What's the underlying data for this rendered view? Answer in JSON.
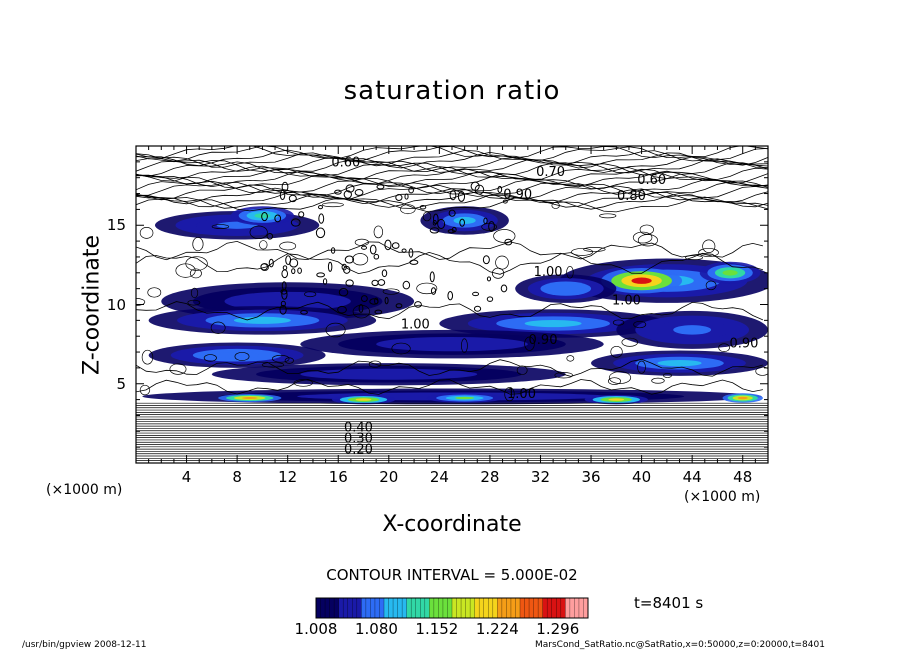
{
  "chart_data": {
    "type": "heatmap",
    "title": "saturation ratio",
    "xlabel": "X-coordinate",
    "ylabel": "Z-coordinate",
    "x_unit_left": "(×1000 m)",
    "x_unit_right": "(×1000 m)",
    "xlim": [
      0,
      50
    ],
    "ylim": [
      0,
      20
    ],
    "x_ticks": [
      4,
      8,
      12,
      16,
      20,
      24,
      28,
      32,
      36,
      40,
      44,
      48
    ],
    "y_ticks": [
      5,
      10,
      15
    ],
    "contour_interval_label": "CONTOUR INTERVAL = 5.000E-02",
    "colorbar_ticks": [
      "1.008",
      "1.080",
      "1.152",
      "1.224",
      "1.296"
    ],
    "colorbar_range": [
      1.008,
      1.332
    ],
    "colorbar_colors": [
      "#050060",
      "#1a1aa8",
      "#2d6cf5",
      "#27b9f0",
      "#31d8a6",
      "#6be03c",
      "#c9e623",
      "#f5d41c",
      "#f59d17",
      "#ef5712",
      "#d91212",
      "#ff9e9e"
    ],
    "contour_labels": [
      {
        "text": "0.60",
        "x": 16.6,
        "z": 18.7
      },
      {
        "text": "0.70",
        "x": 32.8,
        "z": 18.1
      },
      {
        "text": "0.60",
        "x": 40.8,
        "z": 17.6
      },
      {
        "text": "0.80",
        "x": 39.2,
        "z": 16.6
      },
      {
        "text": "0.90",
        "x": 30.2,
        "z": 16.7
      },
      {
        "text": "1.00",
        "x": 32.6,
        "z": 11.8
      },
      {
        "text": "1.00",
        "x": 38.8,
        "z": 10.0
      },
      {
        "text": "1.00",
        "x": 22.1,
        "z": 8.5
      },
      {
        "text": "0.90",
        "x": 32.2,
        "z": 7.5
      },
      {
        "text": "1.00",
        "x": 30.5,
        "z": 4.1
      },
      {
        "text": "0.90",
        "x": 48.1,
        "z": 7.3
      },
      {
        "text": "0.20",
        "x": 17.6,
        "z": 0.6
      },
      {
        "text": "0.30",
        "x": 17.6,
        "z": 1.3
      },
      {
        "text": "0.40",
        "x": 17.6,
        "z": 2.0
      }
    ],
    "supersat_regions": [
      {
        "cx": 8,
        "cz": 15.0,
        "rx": 6.5,
        "rz": 0.9,
        "v": 1.07
      },
      {
        "cx": 10,
        "cz": 15.6,
        "rx": 2.5,
        "rz": 0.6,
        "v": 1.13
      },
      {
        "cx": 26,
        "cz": 15.3,
        "rx": 3.5,
        "rz": 0.9,
        "v": 1.1
      },
      {
        "cx": 42,
        "cz": 11.5,
        "rx": 8.5,
        "rz": 1.4,
        "v": 1.1
      },
      {
        "cx": 40,
        "cz": 11.5,
        "rx": 3.2,
        "rz": 0.8,
        "v": 1.28
      },
      {
        "cx": 47,
        "cz": 12.0,
        "rx": 2.4,
        "rz": 0.7,
        "v": 1.16
      },
      {
        "cx": 34,
        "cz": 11.0,
        "rx": 4.0,
        "rz": 0.9,
        "v": 1.08
      },
      {
        "cx": 12,
        "cz": 10.2,
        "rx": 10.0,
        "rz": 1.2,
        "v": 1.06
      },
      {
        "cx": 10,
        "cz": 9.0,
        "rx": 9.0,
        "rz": 0.9,
        "v": 1.1
      },
      {
        "cx": 33,
        "cz": 8.8,
        "rx": 9.0,
        "rz": 0.9,
        "v": 1.09
      },
      {
        "cx": 44,
        "cz": 8.4,
        "rx": 6.0,
        "rz": 1.2,
        "v": 1.07
      },
      {
        "cx": 25,
        "cz": 7.5,
        "rx": 12.0,
        "rz": 0.9,
        "v": 1.06
      },
      {
        "cx": 8,
        "cz": 6.8,
        "rx": 7.0,
        "rz": 0.8,
        "v": 1.08
      },
      {
        "cx": 43,
        "cz": 6.3,
        "rx": 7.0,
        "rz": 0.8,
        "v": 1.11
      },
      {
        "cx": 20,
        "cz": 5.6,
        "rx": 14.0,
        "rz": 0.7,
        "v": 1.05
      },
      {
        "cx": 25,
        "cz": 4.2,
        "rx": 24.5,
        "rz": 0.5,
        "v": 1.05
      },
      {
        "cx": 9,
        "cz": 4.1,
        "rx": 2.5,
        "rz": 0.25,
        "v": 1.25
      },
      {
        "cx": 18,
        "cz": 4.0,
        "rx": 2.5,
        "rz": 0.3,
        "v": 1.22
      },
      {
        "cx": 26,
        "cz": 4.1,
        "rx": 3.0,
        "rz": 0.3,
        "v": 1.15
      },
      {
        "cx": 38,
        "cz": 4.0,
        "rx": 2.5,
        "rz": 0.3,
        "v": 1.2
      },
      {
        "cx": 48,
        "cz": 4.1,
        "rx": 1.6,
        "rz": 0.3,
        "v": 1.24
      }
    ],
    "time_label": "t=8401 s",
    "grid": false
  },
  "footer": {
    "left": "/usr/bin/gpview   2008-12-11",
    "right": "MarsCond_SatRatio.nc@SatRatio,x=0:50000,z=0:20000,t=8401"
  }
}
